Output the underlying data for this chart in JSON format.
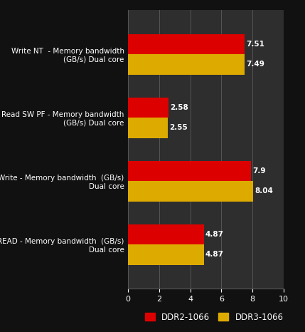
{
  "categories": [
    "Write NT  - Memory bandwidth\n(GB/s) Dual core",
    "Read SW PF - Memory bandwidth\n(GB/s) Dual core",
    "Write - Memory bandwidth  (GB/s)\nDual core",
    "READ - Memory bandwidth  (GB/s)\nDual core"
  ],
  "ddr2_values": [
    4.87,
    7.9,
    2.58,
    7.51
  ],
  "ddr3_values": [
    4.87,
    8.04,
    2.55,
    7.49
  ],
  "ddr2_color": "#dd0000",
  "ddr3_color": "#ddaa00",
  "background_color": "#111111",
  "plot_bg_color": "#2e2e2e",
  "text_color": "#ffffff",
  "grid_color": "#555555",
  "xlim": [
    0,
    10
  ],
  "xticks": [
    0,
    2,
    4,
    6,
    8,
    10
  ],
  "legend_labels": [
    "DDR2-1066",
    "DDR3-1066"
  ],
  "bar_height": 0.32,
  "value_fontsize": 7.5,
  "label_fontsize": 7.5,
  "tick_fontsize": 8,
  "legend_fontsize": 8.5
}
